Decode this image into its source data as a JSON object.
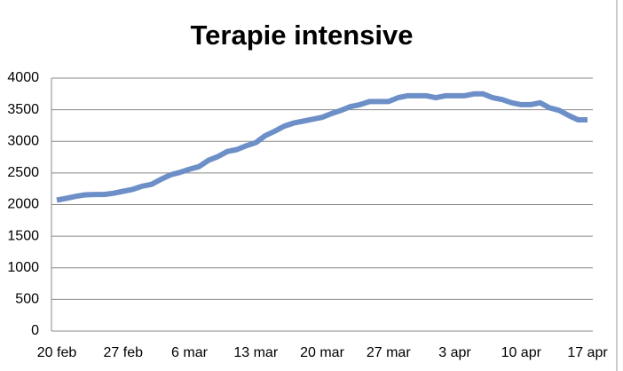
{
  "chart_data": {
    "type": "line",
    "title": "Terapie intensive",
    "categories": [
      "20 feb",
      null,
      null,
      null,
      null,
      null,
      null,
      "27 feb",
      null,
      null,
      null,
      null,
      null,
      null,
      "6 mar",
      null,
      null,
      null,
      null,
      null,
      null,
      "13 mar",
      null,
      null,
      null,
      null,
      null,
      null,
      "20 mar",
      null,
      null,
      null,
      null,
      null,
      null,
      "27 mar",
      null,
      null,
      null,
      null,
      null,
      null,
      "3 apr",
      null,
      null,
      null,
      null,
      null,
      null,
      "10 apr",
      null,
      null,
      null,
      null,
      null,
      null,
      "17 apr"
    ],
    "series": [
      {
        "name": "Terapie intensive",
        "color": "#6d8fc7",
        "values": [
          2070,
          2100,
          2130,
          2155,
          2160,
          2160,
          2180,
          2210,
          2240,
          2290,
          2320,
          2400,
          2470,
          2510,
          2560,
          2600,
          2700,
          2760,
          2840,
          2870,
          2930,
          2980,
          3090,
          3160,
          3240,
          3290,
          3320,
          3350,
          3380,
          3440,
          3490,
          3550,
          3580,
          3630,
          3630,
          3630,
          3690,
          3720,
          3720,
          3720,
          3690,
          3720,
          3720,
          3720,
          3750,
          3750,
          3690,
          3660,
          3610,
          3580,
          3580,
          3610,
          3530,
          3490,
          3410,
          3340,
          3340
        ]
      }
    ],
    "ylim": [
      0,
      4000
    ],
    "yticks": [
      0,
      500,
      1000,
      1500,
      2000,
      2500,
      3000,
      3500,
      4000
    ],
    "grid": true
  }
}
